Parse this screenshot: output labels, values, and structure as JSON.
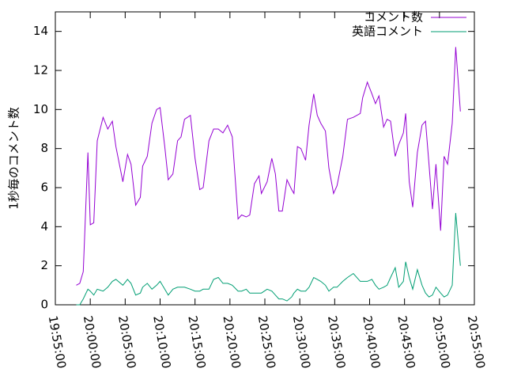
{
  "chart_data": {
    "type": "line",
    "ylabel": "1秒毎のコメント数",
    "x": [
      "19:58:00",
      "19:58:30",
      "19:59:00",
      "19:59:40",
      "20:00:00",
      "20:00:30",
      "20:01:00",
      "20:01:50",
      "20:02:30",
      "20:03:10",
      "20:03:40",
      "20:04:40",
      "20:05:20",
      "20:05:50",
      "20:06:30",
      "20:07:10",
      "20:07:30",
      "20:08:10",
      "20:08:50",
      "20:09:30",
      "20:10:00",
      "20:10:40",
      "20:11:10",
      "20:11:50",
      "20:12:30",
      "20:13:00",
      "20:13:30",
      "20:14:20",
      "20:15:00",
      "20:15:40",
      "20:16:10",
      "20:17:00",
      "20:17:40",
      "20:18:20",
      "20:19:00",
      "20:19:40",
      "20:20:20",
      "20:21:10",
      "20:21:40",
      "20:22:20",
      "20:22:50",
      "20:23:30",
      "20:24:10",
      "20:24:30",
      "20:25:20",
      "20:26:00",
      "20:26:30",
      "20:27:00",
      "20:27:30",
      "20:28:10",
      "20:28:50",
      "20:29:10",
      "20:29:40",
      "20:30:10",
      "20:30:50",
      "20:31:20",
      "20:32:00",
      "20:32:30",
      "20:33:00",
      "20:33:40",
      "20:34:10",
      "20:34:50",
      "20:35:20",
      "20:36:10",
      "20:36:50",
      "20:37:40",
      "20:38:40",
      "20:39:00",
      "20:39:40",
      "20:40:20",
      "20:40:50",
      "20:41:20",
      "20:42:00",
      "20:42:30",
      "20:43:00",
      "20:43:40",
      "20:44:10",
      "20:44:50",
      "20:45:10",
      "20:45:40",
      "20:46:10",
      "20:46:50",
      "20:47:30",
      "20:48:00",
      "20:48:30",
      "20:49:00",
      "20:49:30",
      "20:50:10",
      "20:50:40",
      "20:51:10",
      "20:51:50",
      "20:52:20",
      "20:53:00"
    ],
    "series": [
      {
        "name": "コメント数",
        "color": "#9400d3",
        "values": [
          1.0,
          1.1,
          1.7,
          7.8,
          4.1,
          4.2,
          8.4,
          9.6,
          9.0,
          9.4,
          8.1,
          6.3,
          7.7,
          7.2,
          5.1,
          5.5,
          7.1,
          7.6,
          9.3,
          10.0,
          10.1,
          8.1,
          6.4,
          6.7,
          8.4,
          8.6,
          9.5,
          9.7,
          7.5,
          5.9,
          6.0,
          8.4,
          9.0,
          9.0,
          8.8,
          9.2,
          8.6,
          4.4,
          4.6,
          4.5,
          4.6,
          6.2,
          6.6,
          5.7,
          6.3,
          7.5,
          6.7,
          4.8,
          4.8,
          6.4,
          5.9,
          5.7,
          8.1,
          8.0,
          7.4,
          9.2,
          10.8,
          9.7,
          9.3,
          8.9,
          7.0,
          5.7,
          6.1,
          7.6,
          9.5,
          9.6,
          9.8,
          10.6,
          11.4,
          10.8,
          10.3,
          10.7,
          9.1,
          9.5,
          9.4,
          7.6,
          8.2,
          8.8,
          9.8,
          6.3,
          5.0,
          7.8,
          9.2,
          9.4,
          7.2,
          4.9,
          7.2,
          3.8,
          7.6,
          7.2,
          9.3,
          13.2,
          9.9
        ]
      },
      {
        "name": "英語コメント",
        "color": "#009e73",
        "values": [
          0,
          0,
          0.3,
          0.8,
          0.7,
          0.5,
          0.8,
          0.7,
          0.9,
          1.2,
          1.3,
          1.0,
          1.3,
          1.1,
          0.5,
          0.6,
          0.9,
          1.1,
          0.8,
          1.0,
          1.2,
          0.8,
          0.5,
          0.8,
          0.9,
          0.9,
          0.9,
          0.8,
          0.7,
          0.7,
          0.8,
          0.8,
          1.3,
          1.4,
          1.1,
          1.1,
          1.0,
          0.7,
          0.7,
          0.8,
          0.6,
          0.6,
          0.6,
          0.6,
          0.8,
          0.7,
          0.5,
          0.3,
          0.3,
          0.2,
          0.4,
          0.6,
          0.8,
          0.7,
          0.7,
          0.9,
          1.4,
          1.3,
          1.2,
          1.0,
          0.7,
          0.9,
          0.9,
          1.2,
          1.4,
          1.6,
          1.2,
          1.2,
          1.2,
          1.3,
          1.0,
          0.8,
          0.9,
          1.0,
          1.4,
          1.9,
          0.9,
          1.2,
          2.2,
          1.4,
          0.8,
          1.8,
          1.0,
          0.6,
          0.4,
          0.5,
          0.9,
          0.6,
          0.4,
          0.5,
          1.0,
          4.7,
          2.0
        ]
      }
    ],
    "xlim": [
      "19:55:00",
      "20:55:00"
    ],
    "xticks": [
      "19:55:00",
      "20:00:00",
      "20:05:00",
      "20:10:00",
      "20:15:00",
      "20:20:00",
      "20:25:00",
      "20:30:00",
      "20:35:00",
      "20:40:00",
      "20:45:00",
      "20:50:00",
      "20:55:00"
    ],
    "ylim": [
      0,
      15
    ],
    "yticks": [
      0,
      2,
      4,
      6,
      8,
      10,
      12,
      14
    ]
  }
}
